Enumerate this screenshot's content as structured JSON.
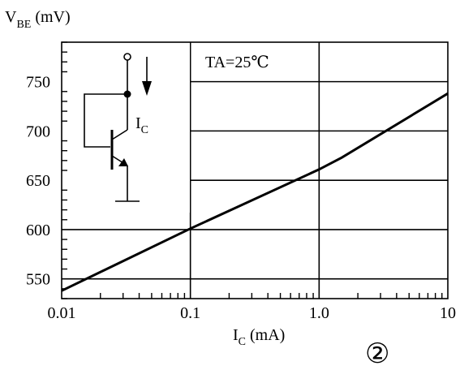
{
  "chart_data": {
    "type": "line",
    "title": "",
    "ylabel": {
      "main": "V",
      "sub": "BE",
      "unit": "(mV)"
    },
    "xlabel": {
      "main": "I",
      "sub": "C",
      "unit": "(mA)"
    },
    "x_scale": "log",
    "xlim": [
      0.01,
      10
    ],
    "ylim": [
      530,
      790
    ],
    "x_ticks": [
      {
        "value": 0.01,
        "label": "0.01"
      },
      {
        "value": 0.1,
        "label": "0.1"
      },
      {
        "value": 1,
        "label": "1.0"
      },
      {
        "value": 10,
        "label": "10"
      }
    ],
    "y_ticks": [
      {
        "value": 550,
        "label": "550"
      },
      {
        "value": 600,
        "label": "600"
      },
      {
        "value": 650,
        "label": "650"
      },
      {
        "value": 700,
        "label": "700"
      },
      {
        "value": 750,
        "label": "750"
      }
    ],
    "grid": true,
    "series": [
      {
        "name": "",
        "x": [
          0.01,
          0.1,
          1.0,
          1.5,
          10
        ],
        "y": [
          538,
          601,
          661,
          673,
          738
        ]
      }
    ],
    "annotations": [
      {
        "text": "TA=25℃"
      }
    ],
    "figure_number": "②",
    "inset": {
      "label": {
        "main": "I",
        "sub": "C"
      },
      "description": "diode-connected transistor"
    }
  }
}
